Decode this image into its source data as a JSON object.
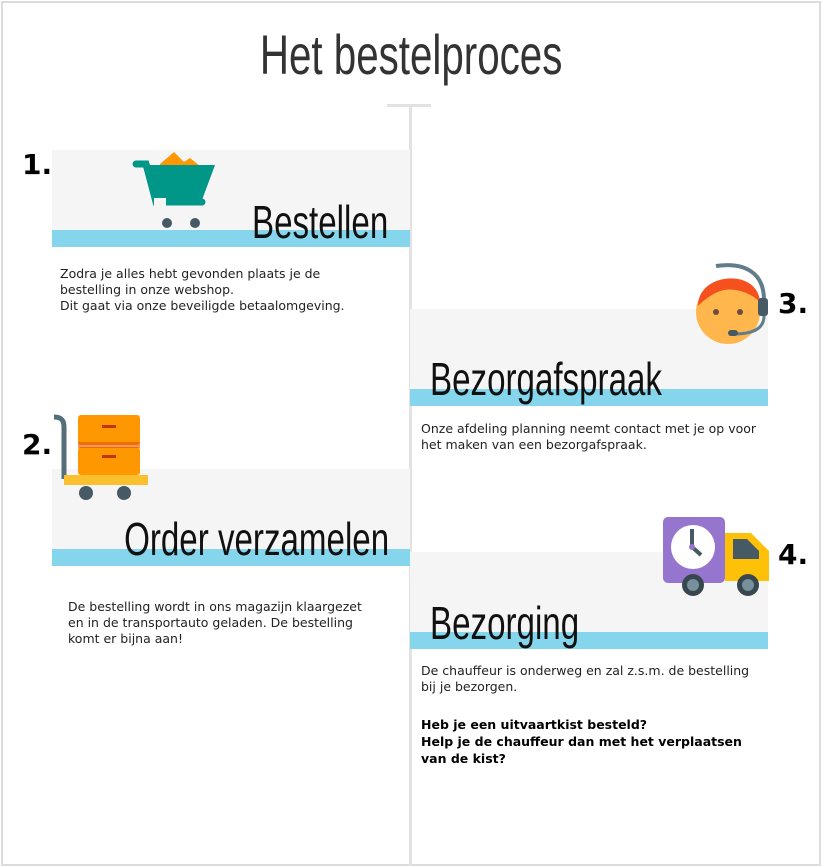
{
  "title": "Het bestelproces",
  "steps": [
    {
      "number": "1.",
      "heading": "Bestellen",
      "icon": "shopping-cart-icon",
      "lines": [
        "Zodra je alles hebt gevonden plaats je de",
        "bestelling in onze webshop.",
        "Dit gaat via onze beveiligde betaalomgeving."
      ]
    },
    {
      "number": "2.",
      "heading": "Order verzamelen",
      "icon": "hand-truck-boxes-icon",
      "lines": [
        "De bestelling wordt in ons magazijn klaargezet",
        "en in de transportauto geladen. De bestelling",
        "komt er bijna aan!"
      ]
    },
    {
      "number": "3.",
      "heading": "Bezorgafspraak",
      "icon": "support-agent-headset-icon",
      "lines": [
        "Onze afdeling planning neemt contact met je op voor",
        "het maken van een bezorgafspraak."
      ]
    },
    {
      "number": "4.",
      "heading": "Bezorging",
      "icon": "delivery-truck-clock-icon",
      "lines": [
        "De chauffeur is onderweg en zal z.s.m. de bestelling",
        "bij je bezorgen."
      ],
      "bold_lines": [
        "Heb je een uitvaartkist besteld?",
        "Help je de chauffeur dan met het verplaatsen",
        "van de kist?"
      ]
    }
  ],
  "colors": {
    "accent_strip": "#85d6ec",
    "card_bg": "#f5f5f5",
    "cart": "#009688"
  }
}
